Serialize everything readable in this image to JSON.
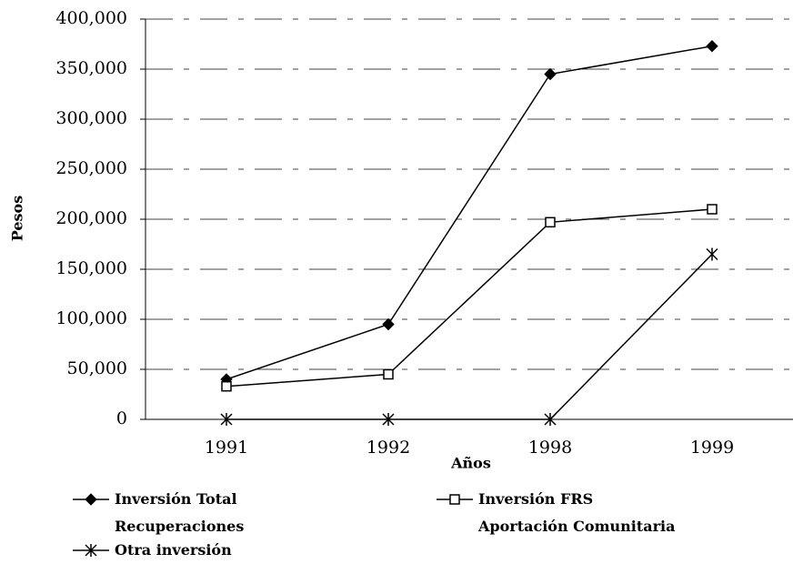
{
  "chart_data": {
    "type": "line",
    "y_label": "Pesos",
    "x_label": "Años",
    "categories": [
      "1991",
      "1992",
      "1998",
      "1999"
    ],
    "series": [
      {
        "name": "Inversión Total Recuperaciones",
        "color": "#000000",
        "marker": "diamond",
        "values": [
          40000,
          95000,
          345000,
          373000
        ]
      },
      {
        "name": "Inversión FRS Aportación Comunitaria",
        "color": "#000000",
        "marker": "square",
        "values": [
          33000,
          45000,
          197000,
          210000
        ]
      },
      {
        "name": "Otra inversión",
        "color": "#000000",
        "marker": "star",
        "values": [
          0,
          0,
          0,
          165000
        ]
      }
    ],
    "ylim": [
      0,
      400000
    ],
    "yticks": [
      0,
      {
        "value": 50000,
        "label": "50,000"
      },
      {
        "value": 100000,
        "label": "100,000"
      },
      {
        "value": 150000,
        "label": "150,000"
      },
      {
        "value": 200000,
        "label": "200,000"
      },
      {
        "value": 250000,
        "label": "250,000"
      },
      {
        "value": 300000,
        "label": "300,000"
      },
      {
        "value": 350000,
        "label": "350,000"
      },
      {
        "value": 400000,
        "label": "400,000"
      }
    ],
    "grid": true
  }
}
